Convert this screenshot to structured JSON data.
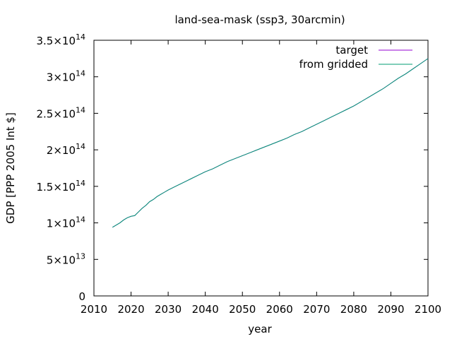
{
  "chart_data": {
    "type": "line",
    "title": "land-sea-mask (ssp3, 30arcmin)",
    "xlabel": "year",
    "ylabel": "GDP [PPP 2005 Int $]",
    "xlim": [
      2010,
      2100
    ],
    "ylim": [
      0,
      350000000000000.0
    ],
    "x_ticks": [
      {
        "value": 2010,
        "label": "2010"
      },
      {
        "value": 2020,
        "label": "2020"
      },
      {
        "value": 2030,
        "label": "2030"
      },
      {
        "value": 2040,
        "label": "2040"
      },
      {
        "value": 2050,
        "label": "2050"
      },
      {
        "value": 2060,
        "label": "2060"
      },
      {
        "value": 2070,
        "label": "2070"
      },
      {
        "value": 2080,
        "label": "2080"
      },
      {
        "value": 2090,
        "label": "2090"
      },
      {
        "value": 2100,
        "label": "2100"
      }
    ],
    "y_ticks": [
      {
        "value": 0,
        "mantissa": "0",
        "times": "",
        "exponent": ""
      },
      {
        "value": 50000000000000.0,
        "mantissa": "5",
        "times": "×10",
        "exponent": "13"
      },
      {
        "value": 100000000000000.0,
        "mantissa": "1",
        "times": "×10",
        "exponent": "14"
      },
      {
        "value": 150000000000000.0,
        "mantissa": "1.5",
        "times": "×10",
        "exponent": "14"
      },
      {
        "value": 200000000000000.0,
        "mantissa": "2",
        "times": "×10",
        "exponent": "14"
      },
      {
        "value": 250000000000000.0,
        "mantissa": "2.5",
        "times": "×10",
        "exponent": "14"
      },
      {
        "value": 300000000000000.0,
        "mantissa": "3",
        "times": "×10",
        "exponent": "14"
      },
      {
        "value": 350000000000000.0,
        "mantissa": "3.5",
        "times": "×10",
        "exponent": "14"
      }
    ],
    "grid": false,
    "legend_position": "top-right",
    "series": [
      {
        "name": "target",
        "color": "#9400d3",
        "x": [
          2015,
          2016,
          2017,
          2018,
          2019,
          2020,
          2021,
          2022,
          2023,
          2024,
          2025,
          2026,
          2027,
          2028,
          2029,
          2030,
          2032,
          2034,
          2036,
          2038,
          2040,
          2042,
          2044,
          2046,
          2048,
          2050,
          2052,
          2054,
          2056,
          2058,
          2060,
          2062,
          2064,
          2066,
          2068,
          2070,
          2072,
          2074,
          2076,
          2078,
          2080,
          2082,
          2084,
          2086,
          2088,
          2090,
          2092,
          2094,
          2096,
          2098,
          2100
        ],
        "values": [
          94000000000000.0,
          97000000000000.0,
          100000000000000.0,
          104000000000000.0,
          107000000000000.0,
          109000000000000.0,
          110000000000000.0,
          115000000000000.0,
          120000000000000.0,
          124000000000000.0,
          129000000000000.0,
          132000000000000.0,
          136000000000000.0,
          139000000000000.0,
          142000000000000.0,
          145000000000000.0,
          150000000000000.0,
          155000000000000.0,
          160000000000000.0,
          165000000000000.0,
          170000000000000.0,
          174000000000000.0,
          179000000000000.0,
          184000000000000.0,
          188000000000000.0,
          192000000000000.0,
          196000000000000.0,
          200000000000000.0,
          204000000000000.0,
          208000000000000.0,
          212000000000000.0,
          216000000000000.0,
          221000000000000.0,
          225000000000000.0,
          230000000000000.0,
          235000000000000.0,
          240000000000000.0,
          245000000000000.0,
          250000000000000.0,
          255000000000000.0,
          260000000000000.0,
          266000000000000.0,
          272000000000000.0,
          278000000000000.0,
          284000000000000.0,
          291000000000000.0,
          298000000000000.0,
          304000000000000.0,
          311000000000000.0,
          318000000000000.0,
          325000000000000.0
        ]
      },
      {
        "name": "from gridded",
        "color": "#009e73",
        "x": [
          2015,
          2016,
          2017,
          2018,
          2019,
          2020,
          2021,
          2022,
          2023,
          2024,
          2025,
          2026,
          2027,
          2028,
          2029,
          2030,
          2032,
          2034,
          2036,
          2038,
          2040,
          2042,
          2044,
          2046,
          2048,
          2050,
          2052,
          2054,
          2056,
          2058,
          2060,
          2062,
          2064,
          2066,
          2068,
          2070,
          2072,
          2074,
          2076,
          2078,
          2080,
          2082,
          2084,
          2086,
          2088,
          2090,
          2092,
          2094,
          2096,
          2098,
          2100
        ],
        "values": [
          94000000000000.0,
          97000000000000.0,
          100000000000000.0,
          104000000000000.0,
          107000000000000.0,
          109000000000000.0,
          110000000000000.0,
          115000000000000.0,
          120000000000000.0,
          124000000000000.0,
          129000000000000.0,
          132000000000000.0,
          136000000000000.0,
          139000000000000.0,
          142000000000000.0,
          145000000000000.0,
          150000000000000.0,
          155000000000000.0,
          160000000000000.0,
          165000000000000.0,
          170000000000000.0,
          174000000000000.0,
          179000000000000.0,
          184000000000000.0,
          188000000000000.0,
          192000000000000.0,
          196000000000000.0,
          200000000000000.0,
          204000000000000.0,
          208000000000000.0,
          212000000000000.0,
          216000000000000.0,
          221000000000000.0,
          225000000000000.0,
          230000000000000.0,
          235000000000000.0,
          240000000000000.0,
          245000000000000.0,
          250000000000000.0,
          255000000000000.0,
          260000000000000.0,
          266000000000000.0,
          272000000000000.0,
          278000000000000.0,
          284000000000000.0,
          291000000000000.0,
          298000000000000.0,
          304000000000000.0,
          311000000000000.0,
          318000000000000.0,
          325000000000000.0
        ]
      }
    ]
  }
}
